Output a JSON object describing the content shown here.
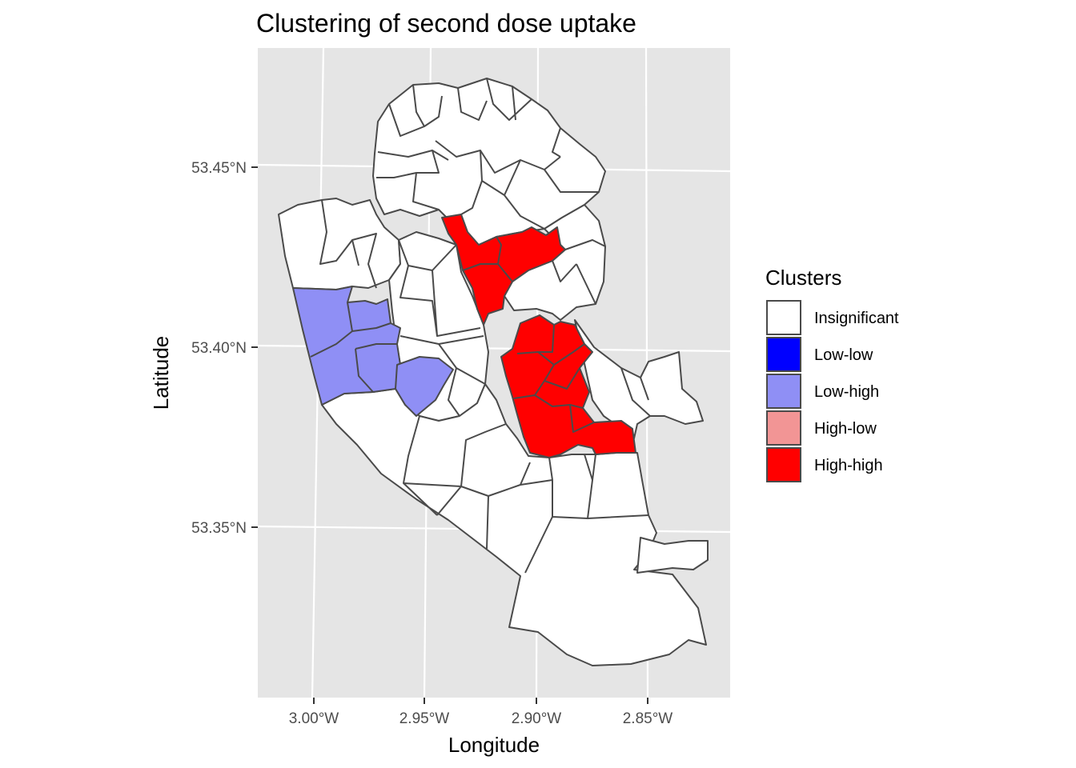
{
  "chart_data": {
    "type": "choropleth map",
    "title": "Clustering of second dose uptake",
    "xlabel": "Longitude",
    "ylabel": "Latitude",
    "x_ticks": [
      "3.00°W",
      "2.95°W",
      "2.90°W",
      "2.85°W"
    ],
    "y_ticks": [
      "53.45°N",
      "53.40°N",
      "53.35°N"
    ],
    "xlim": [
      -3.026,
      -2.818
    ],
    "ylim": [
      53.305,
      53.485
    ],
    "grid": true,
    "legend": {
      "title": "Clusters",
      "position": "right",
      "items": [
        {
          "label": "Insignificant",
          "color": "#ffffff"
        },
        {
          "label": "Low-low",
          "color": "#0000ff"
        },
        {
          "label": "Low-high",
          "color": "#8f8ff5"
        },
        {
          "label": "High-low",
          "color": "#f29595"
        },
        {
          "label": "High-high",
          "color": "#ff0000"
        }
      ]
    },
    "colors": {
      "panel_background": "#e5e5e5",
      "grid": "#ffffff",
      "border": "#4a4a4a"
    }
  }
}
